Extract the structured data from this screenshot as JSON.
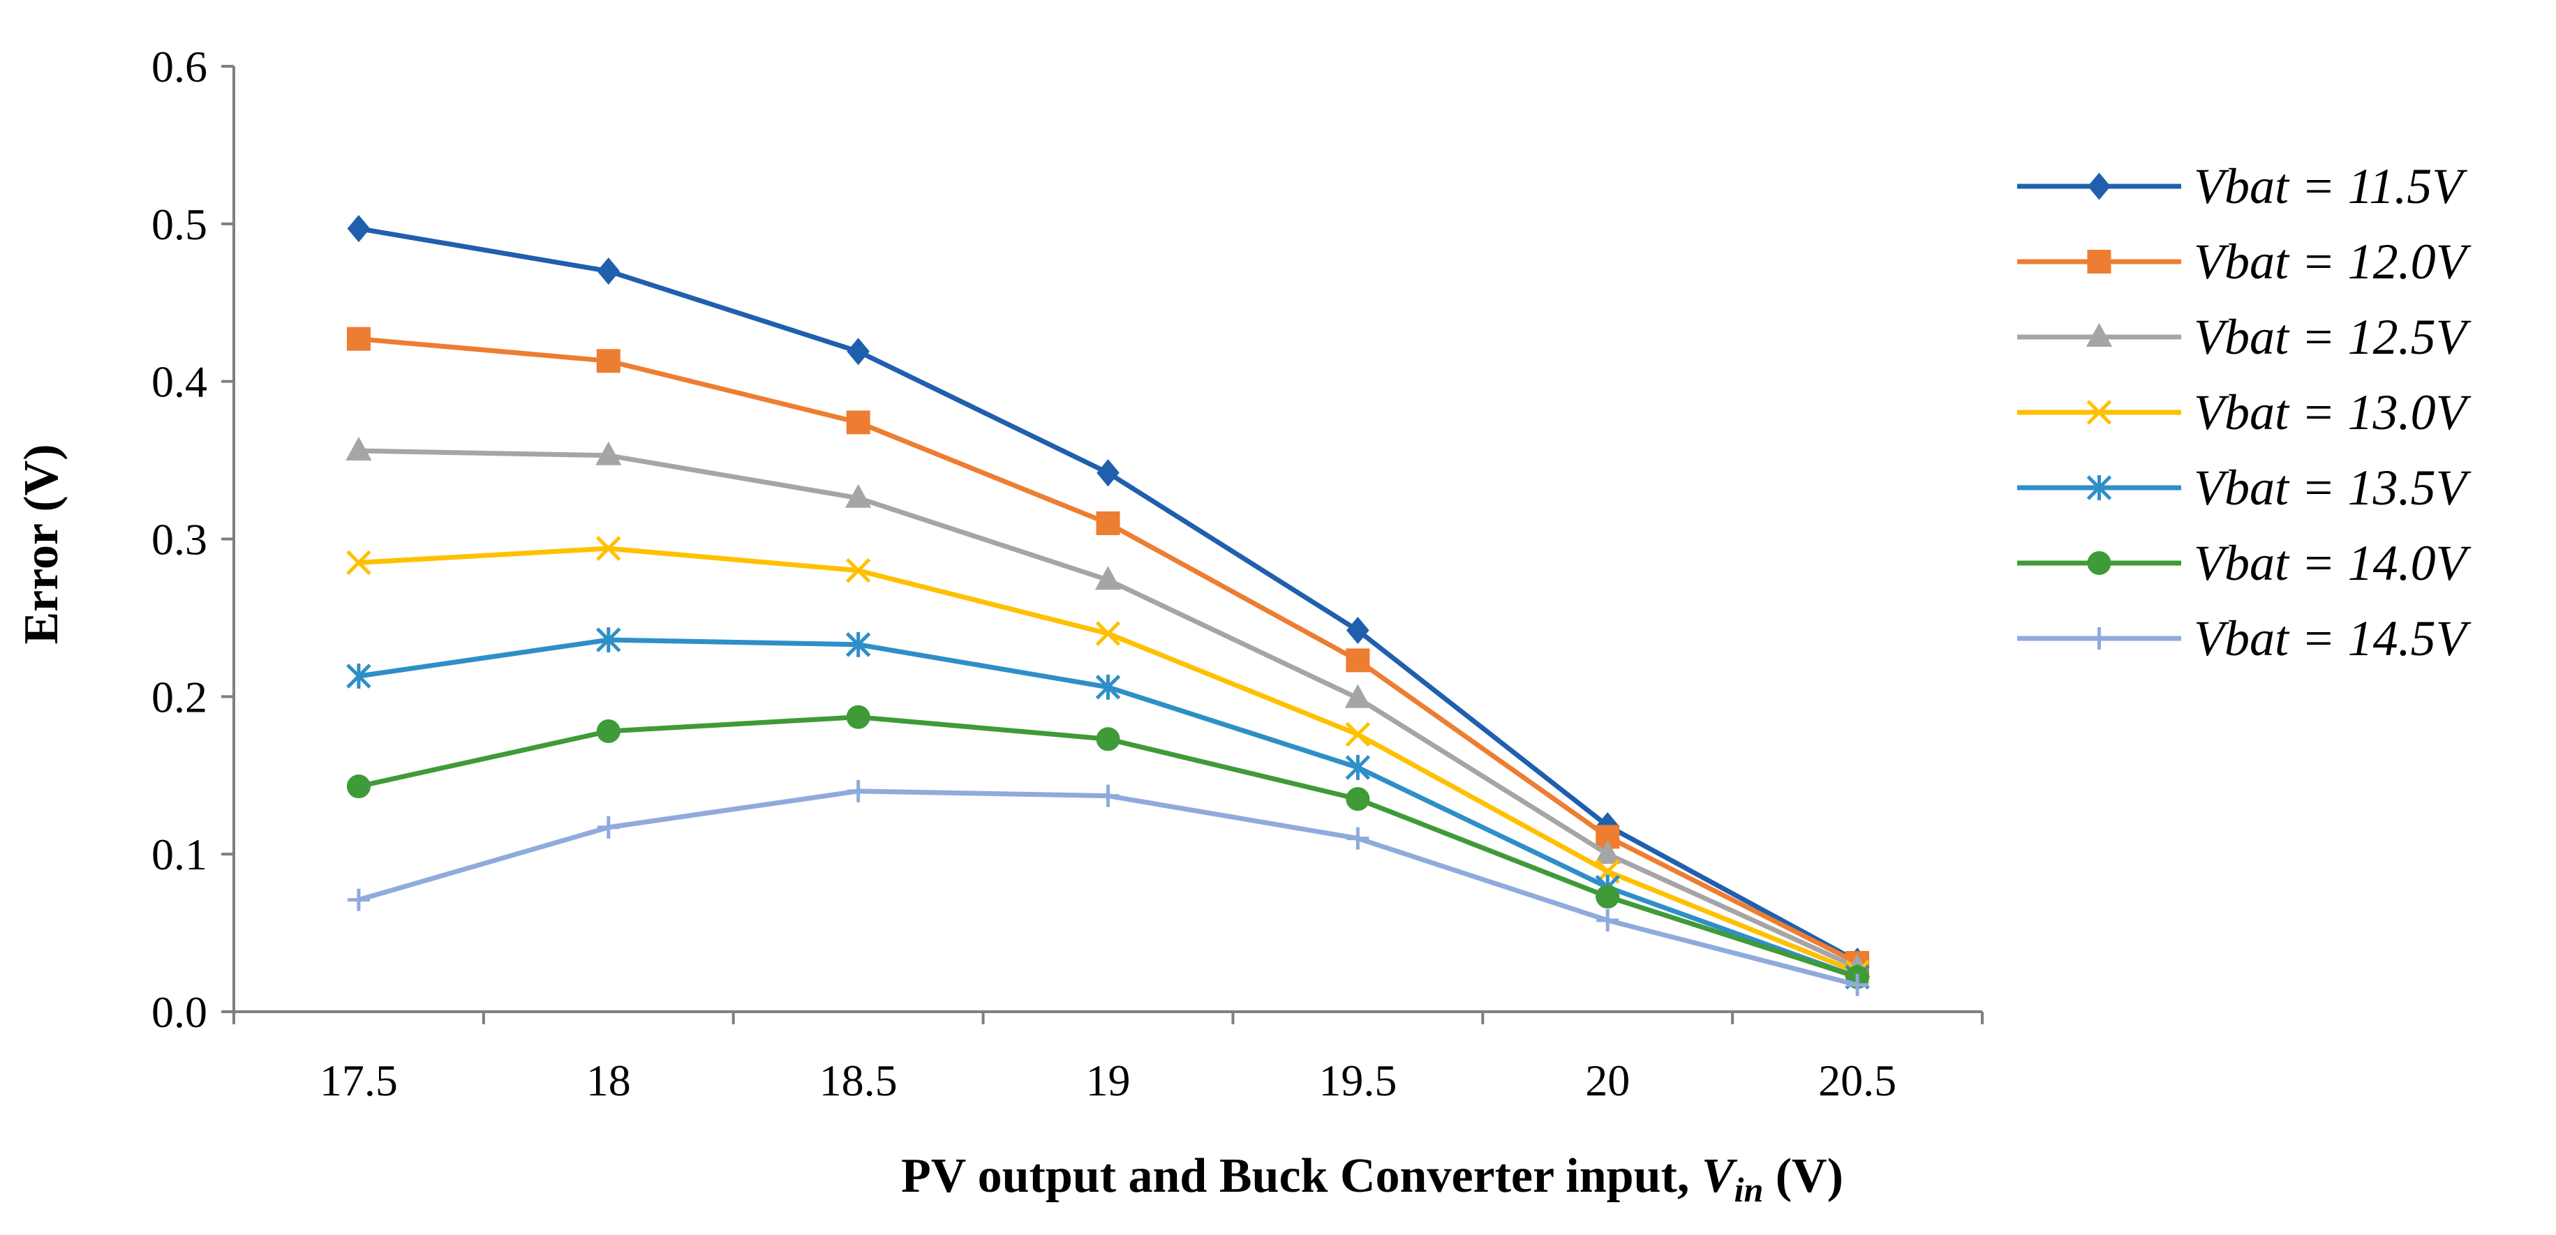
{
  "chart_data": {
    "type": "line",
    "title": "",
    "xlabel": "PV output and Buck Converter input, ",
    "xlabel_symbol": "V",
    "xlabel_subscript": "in",
    "xlabel_unit": " (V)",
    "ylabel": "Error (V)",
    "x": [
      17.5,
      18,
      18.5,
      19,
      19.5,
      20,
      20.5
    ],
    "x_tick_labels": [
      "17.5",
      "18",
      "18.5",
      "19",
      "19.5",
      "20",
      "20.5"
    ],
    "ylim": [
      0,
      0.6
    ],
    "y_ticks": [
      0,
      0.1,
      0.2,
      0.3,
      0.4,
      0.5,
      0.6
    ],
    "y_tick_labels": [
      "0.0",
      "0.1",
      "0.2",
      "0.3",
      "0.4",
      "0.5",
      "0.6"
    ],
    "grid": false,
    "legend_position": "right",
    "series": [
      {
        "name": "Vbat = 11.5V",
        "color": "#1f5fae",
        "marker": "diamond",
        "values": [
          0.497,
          0.47,
          0.419,
          0.342,
          0.242,
          0.118,
          0.032
        ]
      },
      {
        "name": "Vbat = 12.0V",
        "color": "#ed7d31",
        "marker": "square",
        "values": [
          0.427,
          0.413,
          0.374,
          0.31,
          0.223,
          0.111,
          0.031
        ]
      },
      {
        "name": "Vbat = 12.5V",
        "color": "#a5a5a5",
        "marker": "triangle",
        "values": [
          0.356,
          0.353,
          0.326,
          0.274,
          0.199,
          0.1,
          0.028
        ]
      },
      {
        "name": "Vbat = 13.0V",
        "color": "#ffc000",
        "marker": "x",
        "values": [
          0.285,
          0.294,
          0.28,
          0.24,
          0.176,
          0.089,
          0.025
        ]
      },
      {
        "name": "Vbat = 13.5V",
        "color": "#2e8fc8",
        "marker": "star",
        "values": [
          0.213,
          0.236,
          0.233,
          0.206,
          0.155,
          0.079,
          0.022
        ]
      },
      {
        "name": "Vbat = 14.0V",
        "color": "#3f9a38",
        "marker": "circle",
        "values": [
          0.143,
          0.178,
          0.187,
          0.173,
          0.135,
          0.073,
          0.022
        ]
      },
      {
        "name": "Vbat = 14.5V",
        "color": "#8faadc",
        "marker": "plus",
        "values": [
          0.071,
          0.117,
          0.14,
          0.137,
          0.11,
          0.058,
          0.017
        ]
      }
    ]
  }
}
